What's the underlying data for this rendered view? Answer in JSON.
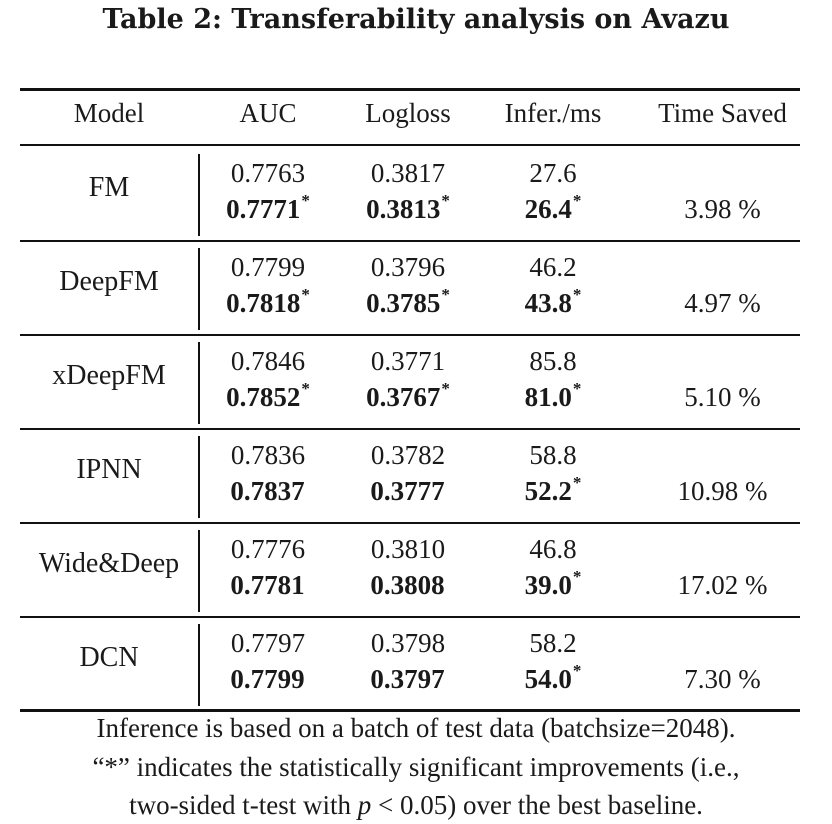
{
  "title": "Table 2: Transferability analysis on Avazu",
  "headers": {
    "model": "Model",
    "auc": "AUC",
    "logloss": "Logloss",
    "infer": "Infer./ms",
    "saved": "Time Saved"
  },
  "rows": [
    {
      "model": "FM",
      "base": {
        "auc": "0.7763",
        "logloss": "0.3817",
        "infer": "27.6"
      },
      "ours": {
        "auc": "0.7771",
        "auc_sig": "*",
        "logloss": "0.3813",
        "logloss_sig": "*",
        "infer": "26.4",
        "infer_sig": "*"
      },
      "saved": "3.98 %"
    },
    {
      "model": "DeepFM",
      "base": {
        "auc": "0.7799",
        "logloss": "0.3796",
        "infer": "46.2"
      },
      "ours": {
        "auc": "0.7818",
        "auc_sig": "*",
        "logloss": "0.3785",
        "logloss_sig": "*",
        "infer": "43.8",
        "infer_sig": "*"
      },
      "saved": "4.97 %"
    },
    {
      "model": "xDeepFM",
      "base": {
        "auc": "0.7846",
        "logloss": "0.3771",
        "infer": "85.8"
      },
      "ours": {
        "auc": "0.7852",
        "auc_sig": "*",
        "logloss": "0.3767",
        "logloss_sig": "*",
        "infer": "81.0",
        "infer_sig": "*"
      },
      "saved": "5.10 %"
    },
    {
      "model": "IPNN",
      "base": {
        "auc": "0.7836",
        "logloss": "0.3782",
        "infer": "58.8"
      },
      "ours": {
        "auc": "0.7837",
        "auc_sig": "",
        "logloss": "0.3777",
        "logloss_sig": "",
        "infer": "52.2",
        "infer_sig": "*"
      },
      "saved": "10.98 %"
    },
    {
      "model": "Wide&Deep",
      "base": {
        "auc": "0.7776",
        "logloss": "0.3810",
        "infer": "46.8"
      },
      "ours": {
        "auc": "0.7781",
        "auc_sig": "",
        "logloss": "0.3808",
        "logloss_sig": "",
        "infer": "39.0",
        "infer_sig": "*"
      },
      "saved": "17.02 %"
    },
    {
      "model": "DCN",
      "base": {
        "auc": "0.7797",
        "logloss": "0.3798",
        "infer": "58.2"
      },
      "ours": {
        "auc": "0.7799",
        "auc_sig": "",
        "logloss": "0.3797",
        "logloss_sig": "",
        "infer": "54.0",
        "infer_sig": "*"
      },
      "saved": "7.30 %"
    }
  ],
  "notes": {
    "line1": "Inference is based on a batch of test data (batchsize=2048).",
    "line2": "“*” indicates the statistically significant improvements (i.e.,",
    "line3_pre": "two-sided t-test with ",
    "line3_var": "p",
    "line3_post": " < 0.05) over the best baseline."
  }
}
